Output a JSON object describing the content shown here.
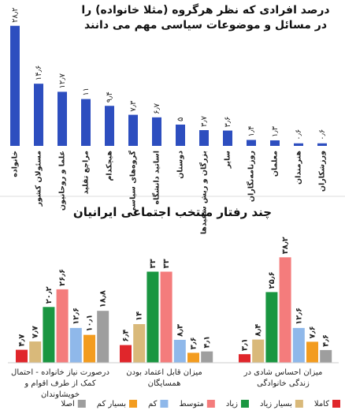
{
  "chart_data": [
    {
      "type": "bar",
      "title": "درصد افرادی که نظر هرگروه (مثلا خانواده) را در مسائل و موضوعات سیاسی مهم می دانند",
      "categories": [
        "خانواده",
        "مسئولان کشور",
        "علما و روحانیون",
        "مراجع تقلید",
        "هیچکدام",
        "گروه‌های سیاسی",
        "اساتید دانشگاه",
        "دوستان",
        "بزرگان و ریش سفیدها",
        "سایر",
        "روزنامه‌نگاران",
        "معلمان",
        "هنرمندان",
        "ورزشکاران"
      ],
      "values": [
        28.2,
        14.6,
        12.7,
        11,
        9.4,
        7.3,
        6.7,
        5,
        3.7,
        3.6,
        1.4,
        1.3,
        0.6,
        0.6
      ],
      "value_labels": [
        "۲۸٫۲",
        "۱۴٫۶",
        "۱۲٫۷",
        "۱۱",
        "۹٫۴",
        "۷٫۳",
        "۶٫۷",
        "۵",
        "۳٫۷",
        "۳٫۶",
        "۱٫۴",
        "۱٫۳",
        "۰٫۶",
        "۰٫۶"
      ],
      "color": "#2d4ebf"
    },
    {
      "type": "grouped_bar",
      "title": "چند رفتار منتخب اجتماعی ایرانیان",
      "categories": [
        "درصورت نیاز خانواده - احتمال کمک از طرف اقوام و خویشاوندان",
        "میزان قابل اعتماد بودن همسایگان",
        "میزان احساس شادی در زندگی خانوادگی"
      ],
      "series": [
        {
          "name": "کاملا",
          "color": "#e0262b",
          "values": [
            4.7,
            6.4,
            3.1
          ],
          "value_labels": [
            "۴٫۷",
            "۶٫۴",
            "۳٫۱"
          ]
        },
        {
          "name": "بسیار زیاد",
          "color": "#d9b97a",
          "values": [
            7.7,
            14,
            8.4
          ],
          "value_labels": [
            "۷٫۷",
            "۱۴",
            "۸٫۴"
          ]
        },
        {
          "name": "زیاد",
          "color": "#1a9641",
          "values": [
            20.2,
            33,
            25.6
          ],
          "value_labels": [
            "۲۰٫۲",
            "۳۳",
            "۲۵٫۶"
          ]
        },
        {
          "name": "متوسط",
          "color": "#f47c7c",
          "values": [
            26.6,
            33,
            38.2
          ],
          "value_labels": [
            "۲۶٫۶",
            "۳۳",
            "۳۸٫۲"
          ]
        },
        {
          "name": "کم",
          "color": "#8fb8ea",
          "values": [
            12.6,
            8.3,
            12.6
          ],
          "value_labels": [
            "۱۲٫۶",
            "۸٫۳",
            "۱۲٫۶"
          ]
        },
        {
          "name": "بسیار کم",
          "color": "#f39c1f",
          "values": [
            10.1,
            3.6,
            7.6
          ],
          "value_labels": [
            "۱۰٫۱",
            "۳٫۶",
            "۷٫۶"
          ]
        },
        {
          "name": "اصلا",
          "color": "#9e9e9e",
          "values": [
            18.8,
            4.1,
            4.6
          ],
          "value_labels": [
            "۱۸٫۸",
            "۴٫۱",
            "۴٫۶"
          ]
        }
      ]
    }
  ]
}
